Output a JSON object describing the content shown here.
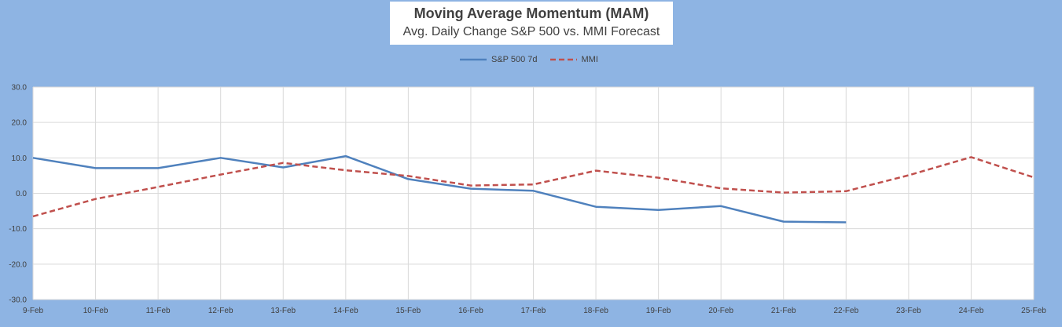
{
  "chart_data": {
    "type": "line",
    "title": "Moving Average Momentum (MAM)",
    "subtitle": "Avg. Daily Change S&P 500 vs. MMI Forecast",
    "categories": [
      "9-Feb",
      "10-Feb",
      "11-Feb",
      "12-Feb",
      "13-Feb",
      "14-Feb",
      "15-Feb",
      "16-Feb",
      "17-Feb",
      "18-Feb",
      "19-Feb",
      "20-Feb",
      "21-Feb",
      "22-Feb",
      "23-Feb",
      "24-Feb",
      "25-Feb"
    ],
    "ylim": [
      -30,
      30
    ],
    "yticks": [
      "30.0",
      "20.0",
      "10.0",
      "0.0",
      "-10.0",
      "-20.0",
      "-30.0"
    ],
    "grid": true,
    "legend_position": "top",
    "series": [
      {
        "name": "S&P 500 7d",
        "color": "#4F81BD",
        "dash": "solid",
        "values": [
          10.0,
          7.1,
          7.1,
          10.0,
          7.3,
          10.5,
          4.0,
          1.3,
          0.7,
          -3.8,
          -4.7,
          -3.6,
          -8.0,
          -8.2,
          null,
          null,
          null
        ]
      },
      {
        "name": "MMI",
        "color": "#C0504D",
        "dash": "dashed",
        "values": [
          -6.5,
          -1.6,
          1.8,
          5.3,
          8.6,
          6.5,
          4.9,
          2.2,
          2.5,
          6.4,
          4.4,
          1.4,
          0.2,
          0.6,
          5.1,
          10.2,
          4.5
        ]
      }
    ]
  }
}
